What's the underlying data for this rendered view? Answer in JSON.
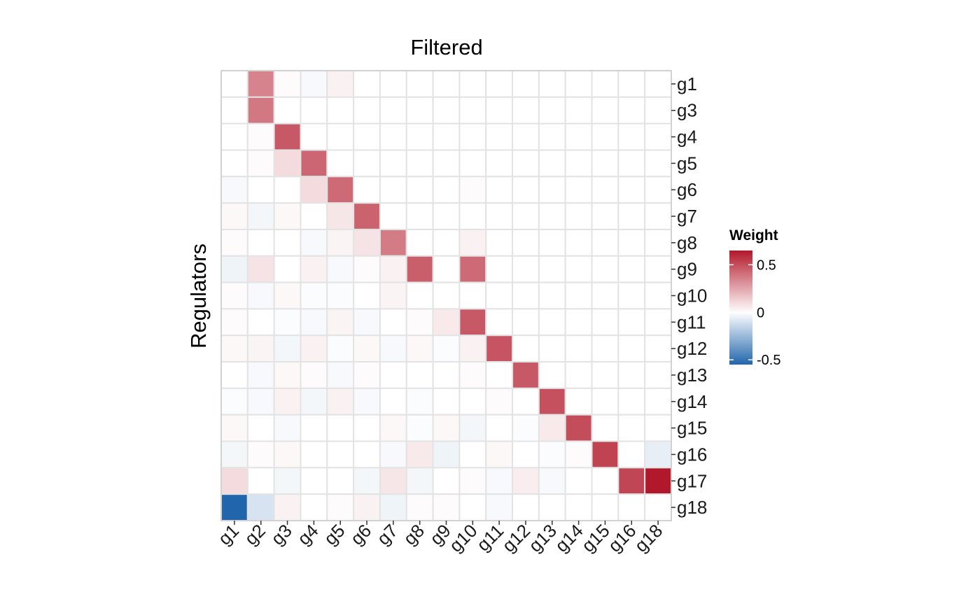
{
  "chart_data": {
    "type": "heatmap",
    "title": "Filtered",
    "xlabel": "",
    "ylabel": "Regulators",
    "x_categories": [
      "g1",
      "g2",
      "g3",
      "g4",
      "g5",
      "g6",
      "g7",
      "g8",
      "g9",
      "g10",
      "g11",
      "g12",
      "g13",
      "g14",
      "g15",
      "g16",
      "g18"
    ],
    "y_categories": [
      "g1",
      "g3",
      "g4",
      "g5",
      "g6",
      "g7",
      "g8",
      "g9",
      "g10",
      "g11",
      "g12",
      "g13",
      "g14",
      "g15",
      "g16",
      "g17",
      "g18"
    ],
    "values": [
      [
        0,
        0.35,
        0.01,
        -0.02,
        0.04,
        0,
        0,
        0,
        0,
        0,
        0,
        0,
        0,
        0,
        0,
        0,
        0
      ],
      [
        0,
        0.38,
        0,
        0,
        0,
        0,
        0,
        0,
        0,
        0,
        0,
        0,
        0,
        0,
        0,
        0,
        0
      ],
      [
        0,
        0.01,
        0.47,
        0,
        0,
        0,
        0,
        0,
        0,
        0,
        0,
        0,
        0,
        0,
        0,
        0,
        0
      ],
      [
        0,
        0.01,
        0.1,
        0.43,
        0,
        0,
        0,
        0,
        0,
        0,
        0,
        0,
        0,
        0,
        0,
        0,
        0
      ],
      [
        -0.02,
        0,
        0,
        0.1,
        0.42,
        0,
        0,
        0,
        0,
        0.01,
        0,
        0,
        0,
        0,
        0,
        0,
        0
      ],
      [
        0.02,
        -0.03,
        0.02,
        0,
        0.07,
        0.44,
        0,
        0,
        0,
        0,
        0,
        0,
        0,
        0,
        0,
        0,
        0
      ],
      [
        0.01,
        0,
        0,
        -0.02,
        0.03,
        0.08,
        0.37,
        0,
        0,
        0.04,
        0,
        0,
        0,
        0,
        0,
        0,
        0
      ],
      [
        -0.04,
        0.08,
        0,
        0.04,
        -0.02,
        0.01,
        0.04,
        0.45,
        0,
        0.42,
        0,
        0,
        0,
        0,
        0,
        0,
        0
      ],
      [
        0.01,
        -0.02,
        0.02,
        -0.01,
        -0.01,
        0,
        0.03,
        0,
        0,
        0,
        0,
        0,
        0,
        0,
        0,
        0,
        0
      ],
      [
        0.01,
        0,
        -0.01,
        -0.02,
        0.03,
        -0.02,
        0,
        0.01,
        0.06,
        0.47,
        0,
        0,
        0,
        0,
        0,
        0,
        0
      ],
      [
        0.02,
        0.03,
        -0.03,
        0.04,
        -0.01,
        0.02,
        -0.02,
        0.02,
        -0.01,
        0.04,
        0.48,
        0,
        0,
        0,
        0,
        0,
        0
      ],
      [
        0,
        -0.02,
        0.02,
        0.01,
        -0.02,
        0.01,
        0,
        0,
        0,
        0.01,
        0,
        0.47,
        0,
        0,
        0,
        0,
        0
      ],
      [
        -0.01,
        -0.02,
        0.04,
        -0.03,
        0.04,
        -0.02,
        0,
        -0.01,
        0,
        0,
        0.01,
        0,
        0.49,
        0,
        0,
        0,
        0
      ],
      [
        0.02,
        0,
        -0.02,
        0,
        0,
        0,
        0.02,
        -0.01,
        0.02,
        -0.03,
        0,
        -0.01,
        0.06,
        0.5,
        0,
        0,
        0
      ],
      [
        -0.03,
        0.01,
        0.02,
        0,
        0,
        0,
        -0.02,
        0.06,
        -0.04,
        0,
        0.02,
        0,
        -0.01,
        0.01,
        0.53,
        0,
        -0.06
      ],
      [
        0.1,
        0,
        -0.03,
        0,
        0,
        -0.03,
        0.07,
        -0.03,
        0,
        0.01,
        -0.02,
        0.05,
        -0.02,
        0,
        0,
        0.52,
        0.65
      ],
      [
        -0.55,
        -0.1,
        0.04,
        0,
        0.01,
        0.04,
        -0.04,
        0.01,
        0.01,
        0,
        -0.02,
        0,
        0,
        0,
        0,
        0,
        0
      ]
    ],
    "legend": {
      "title": "Weight",
      "ticks": [
        "0.5",
        "0",
        "-0.5"
      ],
      "tick_values": [
        0.5,
        0,
        -0.5
      ],
      "position": "right"
    },
    "colorscale": {
      "low": "#2166ac",
      "mid": "#ffffff",
      "high": "#b2182b",
      "range": [
        -0.55,
        0.65
      ]
    },
    "grid": true
  }
}
